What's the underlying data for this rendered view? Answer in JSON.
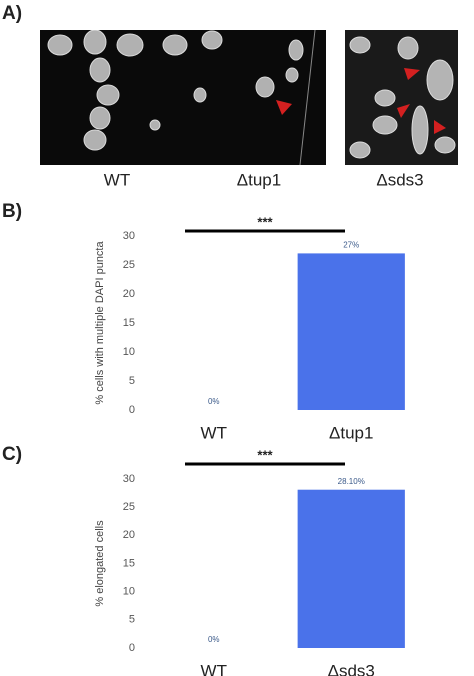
{
  "panel_labels": [
    "A)",
    "B)",
    "C)"
  ],
  "images": [
    {
      "label": "WT"
    },
    {
      "label": "Δtup1"
    },
    {
      "label": "Δsds3"
    }
  ],
  "chart_data": [
    {
      "type": "bar",
      "significance": "***",
      "ylabel": "% cells with multiple DAPI puncta",
      "categories": [
        "WT",
        "Δtup1"
      ],
      "values": [
        0,
        27
      ],
      "value_labels": [
        "0%",
        "27%"
      ],
      "color": "#4a72ea",
      "ylim": [
        0,
        30
      ],
      "yticks": [
        0,
        5,
        10,
        15,
        20,
        25,
        30
      ],
      "grid": false
    },
    {
      "type": "bar",
      "significance": "***",
      "ylabel": "% elongated cells",
      "categories": [
        "WT",
        "Δsds3"
      ],
      "values": [
        0,
        28.1
      ],
      "value_labels": [
        "0%",
        "28.10%"
      ],
      "color": "#4a72ea",
      "ylim": [
        0,
        30
      ],
      "yticks": [
        0,
        5,
        10,
        15,
        20,
        25,
        30
      ],
      "grid": false
    }
  ]
}
